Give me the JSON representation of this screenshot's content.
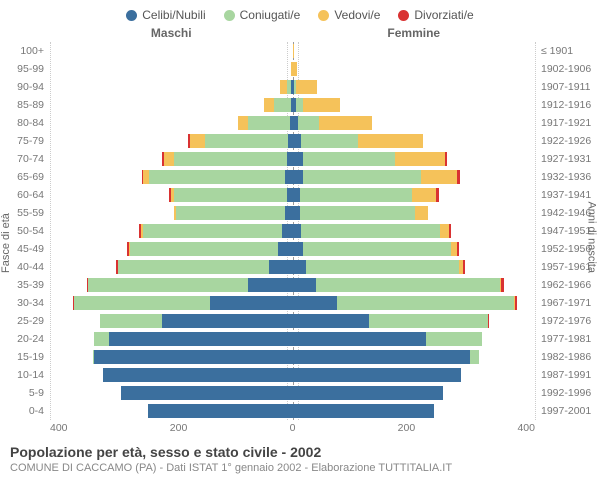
{
  "legend": [
    {
      "label": "Celibi/Nubili",
      "color": "#3b6f9e"
    },
    {
      "label": "Coniugati/e",
      "color": "#a8d6a0"
    },
    {
      "label": "Vedovi/e",
      "color": "#f5c25a"
    },
    {
      "label": "Divorziati/e",
      "color": "#d93232"
    }
  ],
  "subhead_male": "Maschi",
  "subhead_female": "Femmine",
  "axis_left_title": "Fasce di età",
  "axis_right_title": "Anni di nascita",
  "x_ticks": [
    "400",
    "200",
    "0",
    "200",
    "400"
  ],
  "x_max": 410,
  "title": "Popolazione per età, sesso e stato civile - 2002",
  "subtitle": "COMUNE DI CACCAMO (PA) - Dati ISTAT 1° gennaio 2002 - Elaborazione TUTTITALIA.IT",
  "colors": {
    "single": "#3b6f9e",
    "married": "#a8d6a0",
    "widowed": "#f5c25a",
    "divorced": "#d93232",
    "grid": "#cccccc",
    "center": "#999999",
    "bg": "#ffffff"
  },
  "rows": [
    {
      "age": "100+",
      "birth": "≤ 1901",
      "m": {
        "single": 0,
        "married": 0,
        "widowed": 0,
        "divorced": 0
      },
      "f": {
        "single": 0,
        "married": 0,
        "widowed": 2,
        "divorced": 0
      }
    },
    {
      "age": "95-99",
      "birth": "1902-1906",
      "m": {
        "single": 0,
        "married": 0,
        "widowed": 3,
        "divorced": 0
      },
      "f": {
        "single": 0,
        "married": 0,
        "widowed": 8,
        "divorced": 0
      }
    },
    {
      "age": "90-94",
      "birth": "1907-1911",
      "m": {
        "single": 2,
        "married": 8,
        "widowed": 12,
        "divorced": 0
      },
      "f": {
        "single": 3,
        "married": 3,
        "widowed": 35,
        "divorced": 0
      }
    },
    {
      "age": "85-89",
      "birth": "1912-1916",
      "m": {
        "single": 3,
        "married": 28,
        "widowed": 18,
        "divorced": 0
      },
      "f": {
        "single": 6,
        "married": 12,
        "widowed": 62,
        "divorced": 0
      }
    },
    {
      "age": "80-84",
      "birth": "1917-1921",
      "m": {
        "single": 5,
        "married": 70,
        "widowed": 18,
        "divorced": 0
      },
      "f": {
        "single": 10,
        "married": 35,
        "widowed": 90,
        "divorced": 0
      }
    },
    {
      "age": "75-79",
      "birth": "1922-1926",
      "m": {
        "single": 8,
        "married": 140,
        "widowed": 25,
        "divorced": 3
      },
      "f": {
        "single": 15,
        "married": 95,
        "widowed": 110,
        "divorced": 0
      }
    },
    {
      "age": "70-74",
      "birth": "1927-1931",
      "m": {
        "single": 10,
        "married": 190,
        "widowed": 18,
        "divorced": 3
      },
      "f": {
        "single": 18,
        "married": 155,
        "widowed": 85,
        "divorced": 3
      }
    },
    {
      "age": "65-69",
      "birth": "1932-1936",
      "m": {
        "single": 12,
        "married": 230,
        "widowed": 10,
        "divorced": 3
      },
      "f": {
        "single": 18,
        "married": 200,
        "widowed": 60,
        "divorced": 5
      }
    },
    {
      "age": "60-64",
      "birth": "1937-1941",
      "m": {
        "single": 10,
        "married": 190,
        "widowed": 6,
        "divorced": 3
      },
      "f": {
        "single": 12,
        "married": 190,
        "widowed": 40,
        "divorced": 6
      }
    },
    {
      "age": "55-59",
      "birth": "1942-1946",
      "m": {
        "single": 12,
        "married": 185,
        "widowed": 4,
        "divorced": 0
      },
      "f": {
        "single": 12,
        "married": 195,
        "widowed": 22,
        "divorced": 0
      }
    },
    {
      "age": "50-54",
      "birth": "1947-1951",
      "m": {
        "single": 18,
        "married": 235,
        "widowed": 3,
        "divorced": 4
      },
      "f": {
        "single": 15,
        "married": 235,
        "widowed": 15,
        "divorced": 3
      }
    },
    {
      "age": "45-49",
      "birth": "1952-1956",
      "m": {
        "single": 25,
        "married": 250,
        "widowed": 2,
        "divorced": 3
      },
      "f": {
        "single": 18,
        "married": 250,
        "widowed": 10,
        "divorced": 3
      }
    },
    {
      "age": "40-44",
      "birth": "1957-1961",
      "m": {
        "single": 40,
        "married": 255,
        "widowed": 0,
        "divorced": 3
      },
      "f": {
        "single": 22,
        "married": 260,
        "widowed": 6,
        "divorced": 3
      }
    },
    {
      "age": "35-39",
      "birth": "1962-1966",
      "m": {
        "single": 75,
        "married": 270,
        "widowed": 0,
        "divorced": 3
      },
      "f": {
        "single": 40,
        "married": 310,
        "widowed": 3,
        "divorced": 4
      }
    },
    {
      "age": "30-34",
      "birth": "1967-1971",
      "m": {
        "single": 140,
        "married": 230,
        "widowed": 0,
        "divorced": 2
      },
      "f": {
        "single": 75,
        "married": 300,
        "widowed": 2,
        "divorced": 3
      }
    },
    {
      "age": "25-29",
      "birth": "1972-1976",
      "m": {
        "single": 220,
        "married": 105,
        "widowed": 0,
        "divorced": 0
      },
      "f": {
        "single": 130,
        "married": 200,
        "widowed": 0,
        "divorced": 2
      }
    },
    {
      "age": "20-24",
      "birth": "1977-1981",
      "m": {
        "single": 310,
        "married": 25,
        "widowed": 0,
        "divorced": 0
      },
      "f": {
        "single": 225,
        "married": 95,
        "widowed": 0,
        "divorced": 0
      }
    },
    {
      "age": "15-19",
      "birth": "1982-1986",
      "m": {
        "single": 335,
        "married": 2,
        "widowed": 0,
        "divorced": 0
      },
      "f": {
        "single": 300,
        "married": 15,
        "widowed": 0,
        "divorced": 0
      }
    },
    {
      "age": "10-14",
      "birth": "1987-1991",
      "m": {
        "single": 320,
        "married": 0,
        "widowed": 0,
        "divorced": 0
      },
      "f": {
        "single": 285,
        "married": 0,
        "widowed": 0,
        "divorced": 0
      }
    },
    {
      "age": "5-9",
      "birth": "1992-1996",
      "m": {
        "single": 290,
        "married": 0,
        "widowed": 0,
        "divorced": 0
      },
      "f": {
        "single": 255,
        "married": 0,
        "widowed": 0,
        "divorced": 0
      }
    },
    {
      "age": "0-4",
      "birth": "1997-2001",
      "m": {
        "single": 245,
        "married": 0,
        "widowed": 0,
        "divorced": 0
      },
      "f": {
        "single": 240,
        "married": 0,
        "widowed": 0,
        "divorced": 0
      }
    }
  ]
}
